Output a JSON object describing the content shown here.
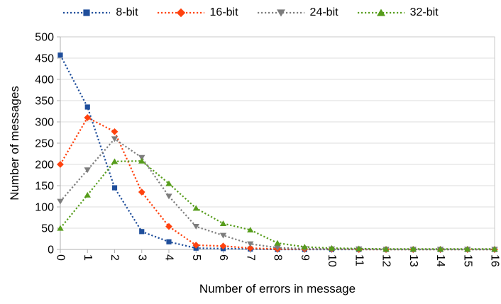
{
  "chart_data": {
    "type": "line",
    "title": "",
    "xlabel": "Number of errors in message",
    "ylabel": "Number of messages",
    "x": [
      0,
      1,
      2,
      3,
      4,
      5,
      6,
      7,
      8,
      9,
      10,
      11,
      12,
      13,
      14,
      15,
      16
    ],
    "x_tick_labels": [
      "0",
      "1",
      "2",
      "3",
      "4",
      "5",
      "6",
      "7",
      "8",
      "9",
      "10",
      "11",
      "12",
      "13",
      "14",
      "15",
      "16"
    ],
    "y_ticks": [
      0,
      50,
      100,
      150,
      200,
      250,
      300,
      350,
      400,
      450,
      500
    ],
    "xlim": [
      0,
      16
    ],
    "ylim": [
      0,
      500
    ],
    "grid": "horizontal-only",
    "legend_position": "top-center",
    "line_style": "dotted",
    "x_tick_label_rotation_deg": 90,
    "series": [
      {
        "name": "8-bit",
        "color": "#1f4e9b",
        "marker": "square",
        "values": [
          457,
          335,
          145,
          42,
          18,
          3,
          2,
          1,
          0,
          0,
          0,
          0,
          0,
          0,
          0,
          0,
          0
        ]
      },
      {
        "name": "16-bit",
        "color": "#ff420e",
        "marker": "diamond",
        "values": [
          200,
          310,
          277,
          135,
          54,
          10,
          8,
          3,
          1,
          1,
          1,
          0,
          0,
          0,
          0,
          0,
          0
        ]
      },
      {
        "name": "24-bit",
        "color": "#7d7d7d",
        "marker": "triangle-down",
        "values": [
          113,
          187,
          260,
          216,
          125,
          54,
          33,
          13,
          4,
          2,
          1,
          1,
          0,
          0,
          0,
          0,
          0
        ]
      },
      {
        "name": "32-bit",
        "color": "#579d1c",
        "marker": "triangle-up",
        "values": [
          50,
          128,
          207,
          208,
          155,
          97,
          61,
          46,
          15,
          6,
          3,
          2,
          1,
          1,
          1,
          1,
          1
        ]
      }
    ]
  },
  "colors": {
    "background": "#ffffff",
    "grid": "#dcdcdc",
    "plot_border": "#c9c9c9",
    "axis": "#b0b0b0",
    "text": "#000000"
  }
}
